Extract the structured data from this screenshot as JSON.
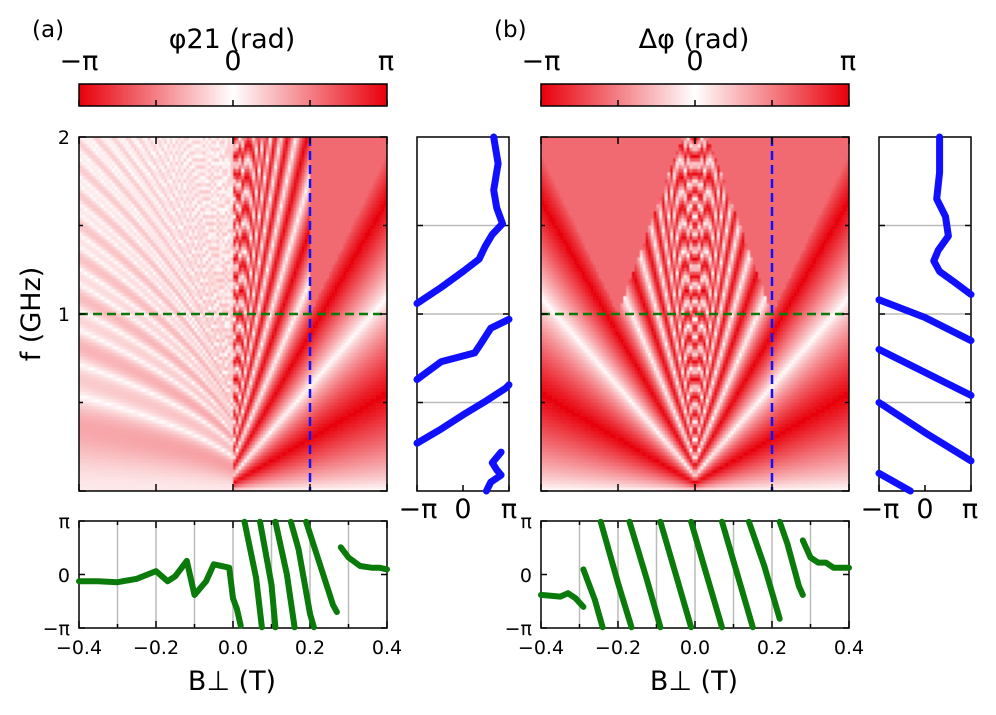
{
  "chart_data": [
    {
      "panel": "(a)",
      "type": "heatmap",
      "colorbar": {
        "title": "φ21 (rad)",
        "tick_labels": [
          "−π",
          "0",
          "π"
        ],
        "range": [
          -3.1416,
          3.1416
        ],
        "colors": [
          "#e8000b",
          "#ffffff",
          "#e8000b"
        ]
      },
      "x": {
        "label": "B⊥ (T)",
        "range": [
          -0.4,
          0.4
        ],
        "ticks": [
          -0.4,
          -0.2,
          0.0,
          0.2,
          0.4
        ],
        "tick_labels": [
          "−0.4",
          "−0.2",
          "0.0",
          "0.2",
          "0.4"
        ]
      },
      "y": {
        "label": "f (GHz)",
        "range": [
          0,
          2
        ],
        "ticks": [
          1,
          2
        ],
        "tick_labels": [
          "1",
          "2"
        ]
      },
      "cuts": {
        "vertical_B": 0.2,
        "vertical_color": "#1010ff",
        "horizontal_f": 1.0,
        "horizontal_color": "#0a7a0a"
      },
      "side_plot": {
        "xlabel_ticks": [
          "−π",
          "0",
          "π"
        ],
        "description": "phase at B⊥ = 0.2 T vs f",
        "segments": [
          [
            [
              1.6,
              0.0
            ],
            [
              1.9,
              0.05
            ],
            [
              2.6,
              0.09
            ],
            [
              2.3,
              0.12
            ],
            [
              2.0,
              0.16
            ],
            [
              2.6,
              0.22
            ]
          ],
          [
            [
              -3.14,
              0.27
            ],
            [
              -1.5,
              0.35
            ],
            [
              0.0,
              0.43
            ],
            [
              1.6,
              0.51
            ],
            [
              2.9,
              0.58
            ],
            [
              3.14,
              0.6
            ]
          ],
          [
            [
              -3.14,
              0.63
            ],
            [
              -1.5,
              0.73
            ],
            [
              0.8,
              0.78
            ],
            [
              1.2,
              0.83
            ],
            [
              1.9,
              0.92
            ],
            [
              3.14,
              0.97
            ]
          ],
          [
            [
              -3.14,
              1.06
            ],
            [
              -1.5,
              1.15
            ],
            [
              0.0,
              1.24
            ],
            [
              1.1,
              1.31
            ],
            [
              1.5,
              1.38
            ],
            [
              2.0,
              1.45
            ],
            [
              2.7,
              1.51
            ],
            [
              2.3,
              1.6
            ],
            [
              2.1,
              1.7
            ],
            [
              2.4,
              1.85
            ],
            [
              2.1,
              2.0
            ]
          ]
        ]
      },
      "bottom_plot": {
        "ylabel_ticks": [
          "π",
          "0",
          "−π"
        ],
        "description": "phase at f = 1 GHz vs B⊥",
        "segments": [
          [
            [
              -0.4,
              -0.4
            ],
            [
              -0.35,
              -0.4
            ],
            [
              -0.3,
              -0.45
            ],
            [
              -0.25,
              -0.25
            ],
            [
              -0.2,
              0.2
            ],
            [
              -0.17,
              -0.4
            ],
            [
              -0.15,
              -0.1
            ],
            [
              -0.12,
              0.8
            ],
            [
              -0.1,
              -1.2
            ],
            [
              -0.07,
              -0.4
            ],
            [
              -0.05,
              0.6
            ],
            [
              -0.01,
              0.4
            ],
            [
              0.0,
              -1.4
            ],
            [
              0.01,
              -2.0
            ],
            [
              0.02,
              -3.0
            ]
          ],
          [
            [
              0.03,
              3.1
            ],
            [
              0.06,
              -0.2
            ],
            [
              0.075,
              -3.1
            ]
          ],
          [
            [
              0.07,
              3.1
            ],
            [
              0.1,
              -0.6
            ],
            [
              0.11,
              -3.1
            ]
          ],
          [
            [
              0.11,
              3.1
            ],
            [
              0.14,
              0.0
            ],
            [
              0.16,
              -3.1
            ]
          ],
          [
            [
              0.15,
              3.1
            ],
            [
              0.17,
              1.5
            ],
            [
              0.2,
              -2.3
            ],
            [
              0.21,
              -3.1
            ]
          ],
          [
            [
              0.19,
              3.1
            ],
            [
              0.22,
              1.0
            ],
            [
              0.26,
              -1.8
            ],
            [
              0.27,
              -2.2
            ]
          ],
          [
            [
              0.28,
              1.6
            ],
            [
              0.3,
              1.0
            ],
            [
              0.33,
              0.5
            ],
            [
              0.36,
              0.4
            ],
            [
              0.38,
              0.4
            ],
            [
              0.4,
              0.3
            ]
          ]
        ]
      }
    },
    {
      "panel": "(b)",
      "type": "heatmap",
      "colorbar": {
        "title": "Δφ (rad)",
        "tick_labels": [
          "−π",
          "0",
          "π"
        ],
        "range": [
          -3.1416,
          3.1416
        ],
        "colors": [
          "#e8000b",
          "#ffffff",
          "#e8000b"
        ]
      },
      "x": {
        "label": "B⊥ (T)",
        "range": [
          -0.4,
          0.4
        ],
        "ticks": [
          -0.4,
          -0.2,
          0.0,
          0.2,
          0.4
        ],
        "tick_labels": [
          "−0.4",
          "−0.2",
          "0.0",
          "0.2",
          "0.4"
        ]
      },
      "y": {
        "label": "f (GHz)",
        "range": [
          0,
          2
        ],
        "ticks": [
          1,
          2
        ],
        "tick_labels": [
          "1",
          "2"
        ]
      },
      "cuts": {
        "vertical_B": 0.2,
        "vertical_color": "#1010ff",
        "horizontal_f": 1.0,
        "horizontal_color": "#0a7a0a"
      },
      "side_plot": {
        "xlabel_ticks": [
          "−π",
          "0",
          "π"
        ],
        "description": "phase difference at B⊥ = 0.2 T vs f",
        "segments": [
          [
            [
              -1.0,
              0.0
            ],
            [
              -3.14,
              0.1
            ]
          ],
          [
            [
              3.14,
              0.17
            ],
            [
              0.0,
              0.33
            ],
            [
              -3.14,
              0.5
            ]
          ],
          [
            [
              3.14,
              0.54
            ],
            [
              0.0,
              0.67
            ],
            [
              -3.14,
              0.8
            ]
          ],
          [
            [
              3.14,
              0.85
            ],
            [
              0.0,
              0.98
            ],
            [
              -3.14,
              1.08
            ]
          ],
          [
            [
              3.14,
              1.11
            ],
            [
              2.0,
              1.18
            ],
            [
              1.0,
              1.24
            ],
            [
              0.6,
              1.3
            ],
            [
              0.9,
              1.36
            ],
            [
              1.6,
              1.44
            ],
            [
              1.4,
              1.55
            ],
            [
              0.8,
              1.65
            ],
            [
              1.0,
              1.8
            ],
            [
              1.0,
              2.0
            ]
          ]
        ]
      },
      "bottom_plot": {
        "ylabel_ticks": [
          "π",
          "0",
          "−π"
        ],
        "description": "phase difference at f = 1 GHz vs B⊥",
        "segments": [
          [
            [
              -0.4,
              -1.2
            ],
            [
              -0.35,
              -1.3
            ],
            [
              -0.33,
              -1.1
            ],
            [
              -0.31,
              -1.4
            ],
            [
              -0.29,
              -1.9
            ]
          ],
          [
            [
              -0.29,
              0.3
            ],
            [
              -0.26,
              -1.5
            ],
            [
              -0.24,
              -3.1
            ]
          ],
          [
            [
              -0.245,
              3.1
            ],
            [
              -0.2,
              -0.5
            ],
            [
              -0.165,
              -3.1
            ]
          ],
          [
            [
              -0.17,
              3.1
            ],
            [
              -0.125,
              -0.3
            ],
            [
              -0.09,
              -3.1
            ]
          ],
          [
            [
              -0.09,
              3.1
            ],
            [
              -0.05,
              0.0
            ],
            [
              -0.01,
              -3.1
            ]
          ],
          [
            [
              -0.01,
              3.1
            ],
            [
              0.03,
              0.0
            ],
            [
              0.07,
              -3.1
            ]
          ],
          [
            [
              0.07,
              3.1
            ],
            [
              0.11,
              0.0
            ],
            [
              0.15,
              -3.1
            ]
          ],
          [
            [
              0.14,
              3.1
            ],
            [
              0.18,
              0.5
            ],
            [
              0.22,
              -2.6
            ]
          ],
          [
            [
              0.22,
              3.1
            ],
            [
              0.24,
              1.8
            ],
            [
              0.27,
              -0.7
            ],
            [
              0.28,
              -1.2
            ]
          ],
          [
            [
              0.28,
              2.0
            ],
            [
              0.3,
              1.0
            ],
            [
              0.32,
              0.7
            ],
            [
              0.34,
              0.7
            ],
            [
              0.36,
              0.4
            ],
            [
              0.4,
              0.4
            ]
          ]
        ]
      }
    }
  ]
}
